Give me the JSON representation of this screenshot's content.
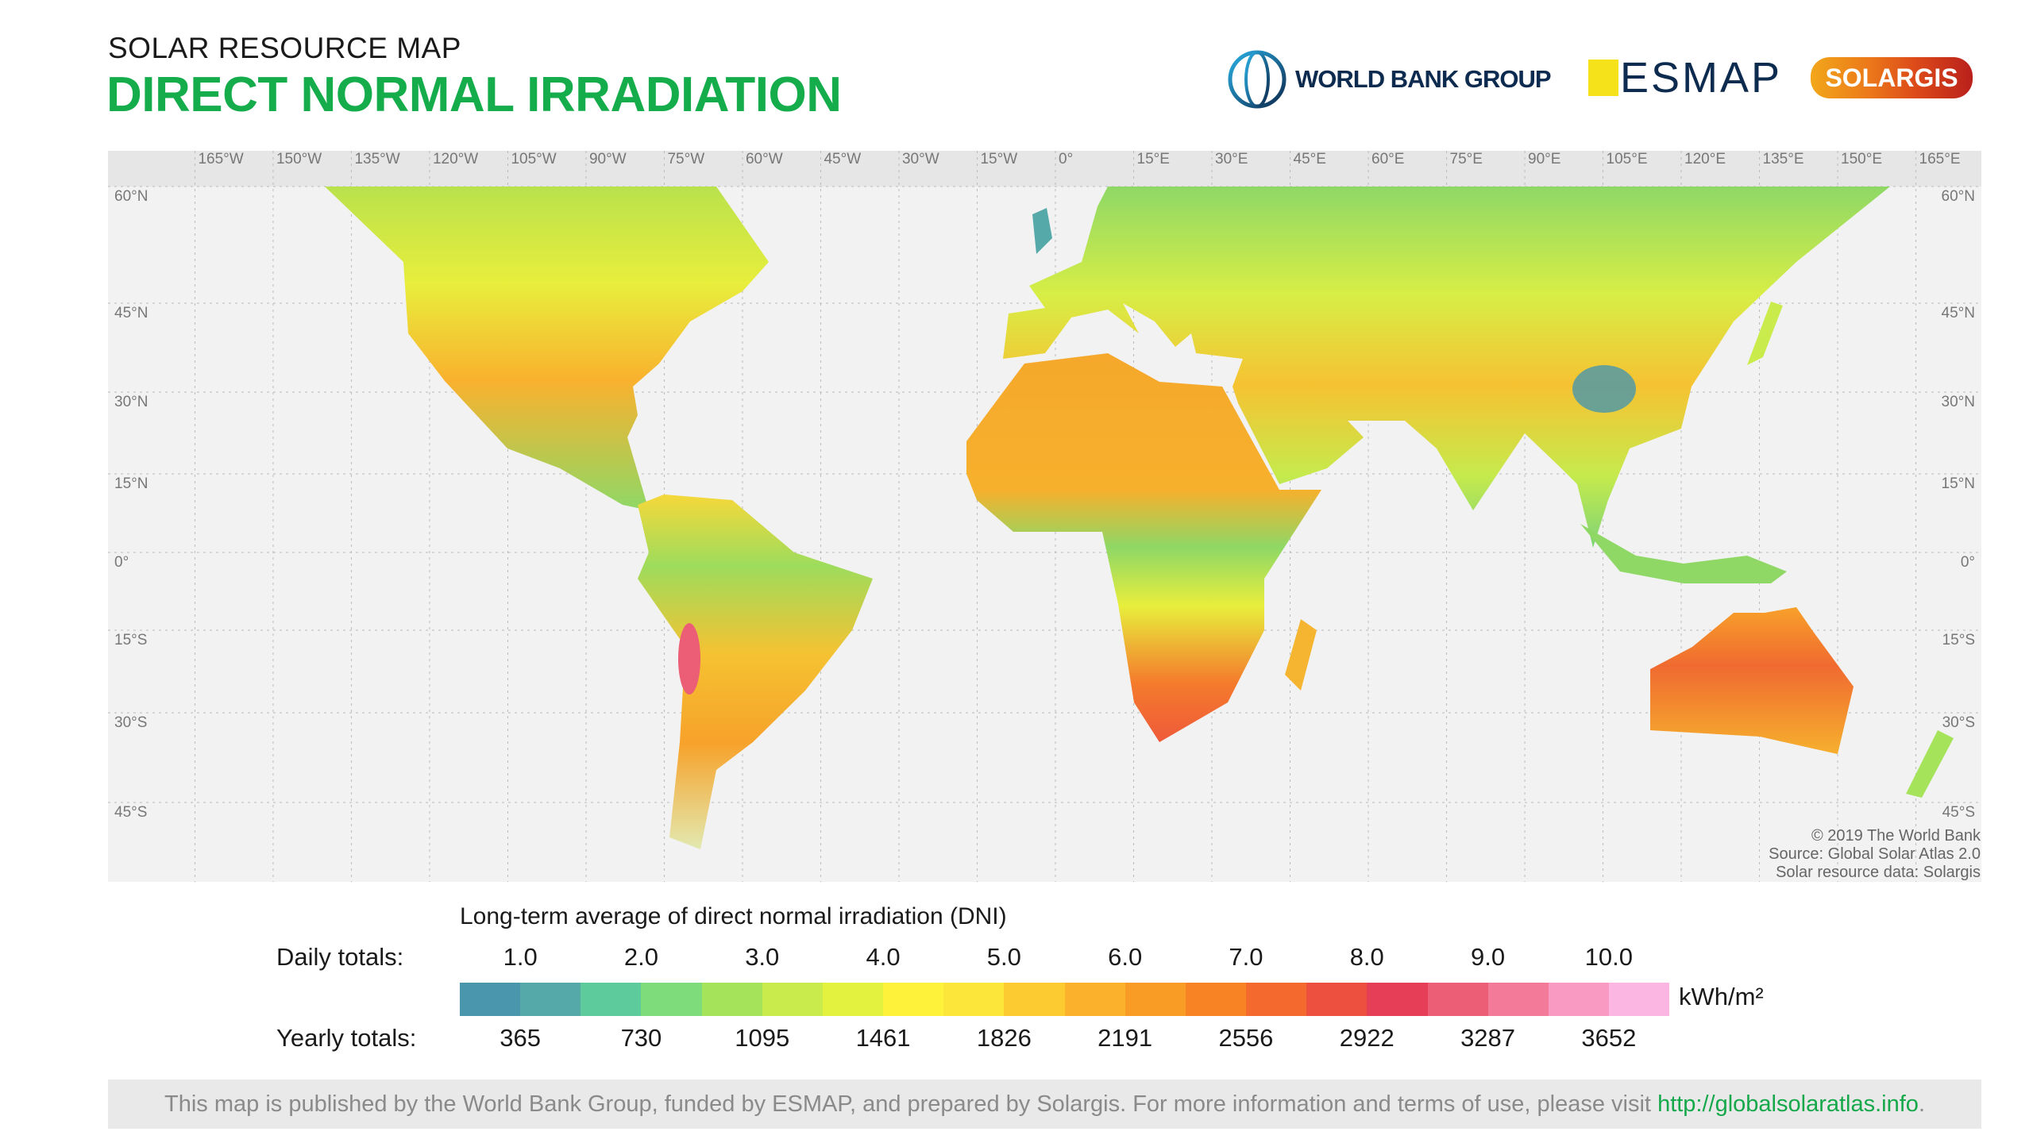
{
  "header": {
    "subtitle": "SOLAR RESOURCE MAP",
    "title": "DIRECT NORMAL IRRADIATION"
  },
  "logos": {
    "world_bank": "WORLD BANK GROUP",
    "esmap": "ESMAP",
    "solargis": "SOLARGIS"
  },
  "map": {
    "lon_labels": [
      "165°W",
      "150°W",
      "135°W",
      "120°W",
      "105°W",
      "90°W",
      "75°W",
      "60°W",
      "45°W",
      "30°W",
      "15°W",
      "0°",
      "15°E",
      "30°E",
      "45°E",
      "60°E",
      "75°E",
      "90°E",
      "105°E",
      "120°E",
      "135°E",
      "150°E",
      "165°E"
    ],
    "lat_labels": [
      "60°N",
      "45°N",
      "30°N",
      "15°N",
      "0°",
      "15°S",
      "30°S",
      "45°S"
    ],
    "copyright": [
      "© 2019 The World Bank",
      "Source: Global Solar Atlas 2.0",
      "Solar resource data: Solargis"
    ]
  },
  "legend": {
    "title": "Long-term average of direct normal irradiation (DNI)",
    "daily_label": "Daily totals:",
    "yearly_label": "Yearly totals:",
    "daily": [
      "1.0",
      "2.0",
      "3.0",
      "4.0",
      "5.0",
      "6.0",
      "7.0",
      "8.0",
      "9.0",
      "10.0"
    ],
    "yearly": [
      "365",
      "730",
      "1095",
      "1461",
      "1826",
      "2191",
      "2556",
      "2922",
      "3287",
      "3652"
    ],
    "unit": "kWh/m²",
    "colors": [
      "#4a96ad",
      "#55aaa9",
      "#5ecb9c",
      "#7fdc7a",
      "#a5e35a",
      "#c9ec4c",
      "#e3f23e",
      "#fff23a",
      "#fde63a",
      "#fccb32",
      "#fbb12c",
      "#f99c26",
      "#f88325",
      "#f46a2e",
      "#ee5040",
      "#e63e56",
      "#ec5d76",
      "#f47a9a",
      "#f99ac2",
      "#fbb7e1"
    ]
  },
  "footer": {
    "text": "This map is published by the World Bank Group, funded by ESMAP, and prepared by Solargis. For more information and terms of use, please visit ",
    "link": "http://globalsolaratlas.info",
    "end": "."
  }
}
